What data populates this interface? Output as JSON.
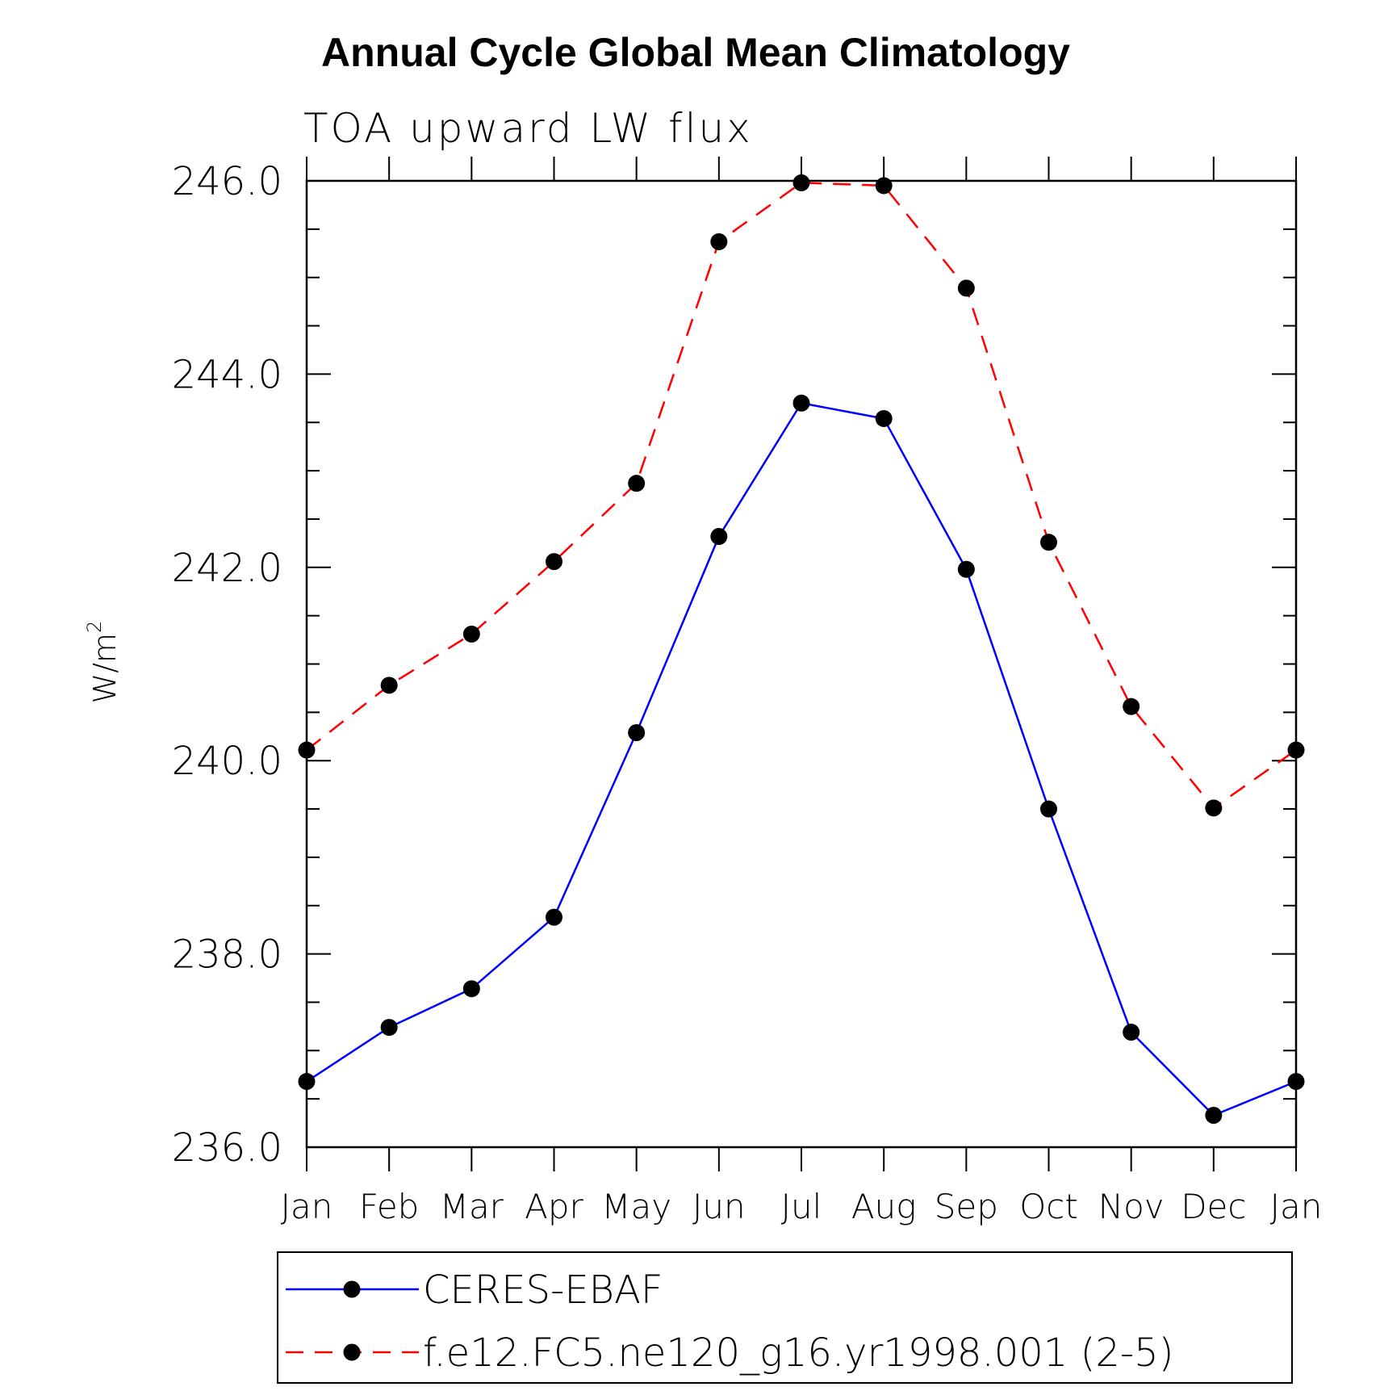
{
  "chart_data": {
    "type": "line",
    "title": "Annual Cycle Global Mean Climatology",
    "subtitle": "TOA upward LW flux",
    "ylabel": "W/m",
    "ylabel_superscript": "2",
    "xlabel": "",
    "ylim": [
      236.0,
      246.0
    ],
    "y_ticks": [
      "246.0",
      "244.0",
      "242.0",
      "240.0",
      "238.0",
      "236.0"
    ],
    "categories": [
      "Jan",
      "Feb",
      "Mar",
      "Apr",
      "May",
      "Jun",
      "Jul",
      "Aug",
      "Sep",
      "Oct",
      "Nov",
      "Dec",
      "Jan"
    ],
    "legend_position": "bottom",
    "grid": false,
    "series": [
      {
        "name": "CERES-EBAF",
        "color": "#0000ff",
        "line_style": "solid",
        "marker": "filled-circle",
        "values": [
          236.68,
          237.24,
          237.64,
          238.38,
          240.29,
          242.32,
          243.7,
          243.54,
          241.98,
          239.5,
          237.19,
          236.33,
          236.68
        ]
      },
      {
        "name": "f.e12.FC5.ne120_g16.yr1998.001 (2-5)",
        "color": "#ff0000",
        "line_style": "dashed",
        "marker": "filled-circle",
        "values": [
          240.11,
          240.78,
          241.31,
          242.06,
          242.87,
          245.37,
          245.98,
          245.95,
          244.89,
          242.26,
          240.56,
          239.51,
          240.11
        ]
      }
    ]
  }
}
